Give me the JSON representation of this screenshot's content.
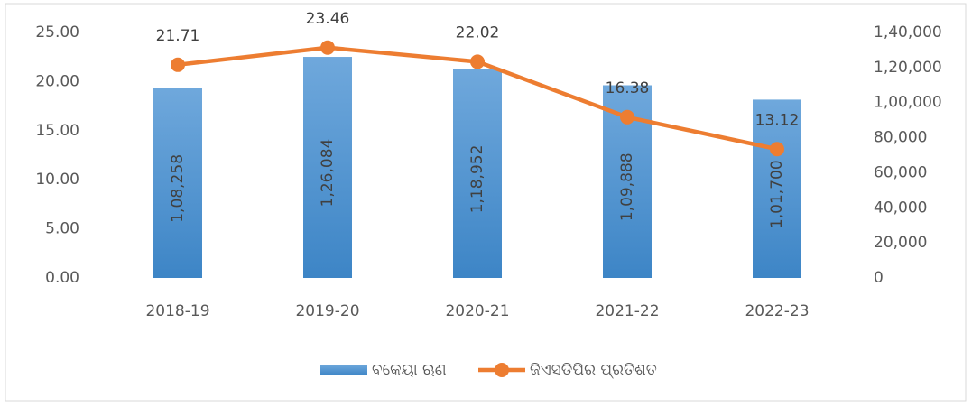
{
  "chart_data": {
    "type": "bar_line",
    "categories": [
      "2018-19",
      "2019-20",
      "2020-21",
      "2021-22",
      "2022-23"
    ],
    "series": [
      {
        "name": "ବକେୟା ଋଣ",
        "type": "bar",
        "axis": "y2",
        "color": "#5b9bd5",
        "values": [
          108258,
          126084,
          118952,
          109888,
          101700
        ],
        "value_labels": [
          "1,08,258",
          "1,26,084",
          "1,18,952",
          "1,09,888",
          "1,01,700"
        ]
      },
      {
        "name": "ଜିଏସଡିପିର ପ୍ରତିଶତ",
        "type": "line",
        "axis": "y",
        "color": "#ed7d31",
        "values": [
          21.71,
          23.46,
          22.02,
          16.38,
          13.12
        ]
      }
    ],
    "ylim": [
      0,
      25
    ],
    "yticks": [
      {
        "value": 0,
        "label": "0.00"
      },
      {
        "value": 5,
        "label": "5.00"
      },
      {
        "value": 10,
        "label": "10.00"
      },
      {
        "value": 15,
        "label": "15.00"
      },
      {
        "value": 20,
        "label": "20.00"
      },
      {
        "value": 25,
        "label": "25.00"
      }
    ],
    "y2lim": [
      0,
      140000
    ],
    "y2ticks": [
      0,
      {
        "value": 20000,
        "label": "20,000"
      },
      {
        "value": 40000,
        "label": "40,000"
      },
      {
        "value": 60000,
        "label": "60,000"
      },
      {
        "value": 80000,
        "label": "80,000"
      },
      {
        "value": 100000,
        "label": "1,00,000"
      },
      {
        "value": 120000,
        "label": "1,20,000"
      },
      {
        "value": 140000,
        "label": "1,40,000"
      }
    ],
    "grid": false,
    "legend": "bottom"
  }
}
